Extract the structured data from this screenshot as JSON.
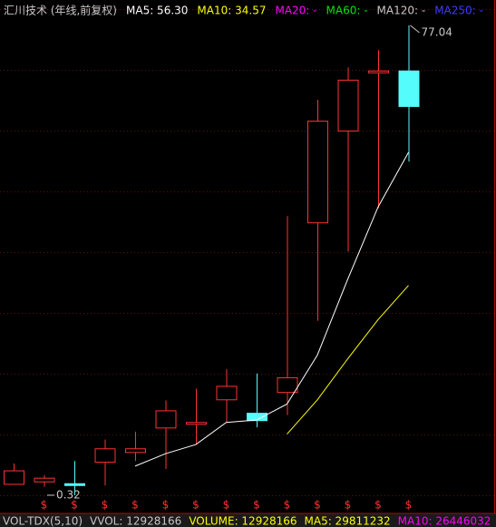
{
  "chart_data": {
    "type": "candlestick",
    "title": "汇川技术 (年线,前复权)",
    "categories": [
      null,
      null,
      null,
      null,
      null,
      null,
      null,
      null,
      null,
      null,
      null,
      null,
      null,
      null
    ],
    "open": [
      2.1,
      2.5,
      2.2,
      5.7,
      7.3,
      11.3,
      11.9,
      15.9,
      13.7,
      17.1,
      44.8,
      59.8,
      69.3,
      69.6
    ],
    "high": [
      5.5,
      3.6,
      5.9,
      9.4,
      10.7,
      15.8,
      17.7,
      20.9,
      20.2,
      45.9,
      64.9,
      70.2,
      73.0,
      77.04
    ],
    "low": [
      2.1,
      1.7,
      0.32,
      1.9,
      5.9,
      4.6,
      8.6,
      12.2,
      11.4,
      13.4,
      28.8,
      40.1,
      47.2,
      54.8
    ],
    "close": [
      4.3,
      3.1,
      1.9,
      7.9,
      7.9,
      14.1,
      12.2,
      18.1,
      12.5,
      19.5,
      61.4,
      68.1,
      69.6,
      63.8
    ],
    "up_color": "#ff3232",
    "down_color": "#54fcfc",
    "series": [
      {
        "name": "MA5: 56.30",
        "color": "#ffffff",
        "values": [
          null,
          null,
          null,
          null,
          5.07,
          7.1,
          8.6,
          12.2,
          12.6,
          15.2,
          23.2,
          35.6,
          47.4,
          56.3
        ]
      },
      {
        "name": "MA10: 34.57",
        "color": "#ffff00",
        "values": [
          null,
          null,
          null,
          null,
          null,
          null,
          null,
          null,
          null,
          10.3,
          15.9,
          22.6,
          29.0,
          34.57
        ]
      }
    ],
    "indicators": [
      {
        "text": "MA20: -",
        "color": "#ff00ff"
      },
      {
        "text": "MA60: -",
        "color": "#00e600"
      },
      {
        "text": "MA120: -",
        "color": "#c8c8c8"
      },
      {
        "text": "MA250: -",
        "color": "#3c3cff"
      }
    ],
    "max_label": 77.04,
    "min_label": 0.32,
    "marker_text": "$",
    "ylim": [
      -2.65,
      81.19
    ],
    "footer": [
      {
        "text": "VOL-TDX(5,10)",
        "color": "#c8c8c8"
      },
      {
        "text": "VVOL: 12928166",
        "color": "#c8c8c8"
      },
      {
        "text": "VOLUME: 12928166",
        "color": "#ffff00"
      },
      {
        "text": "MA5: 29811232",
        "color": "#ffff00"
      },
      {
        "text": "MA10: 26446032",
        "color": "#ff00ff"
      }
    ]
  }
}
